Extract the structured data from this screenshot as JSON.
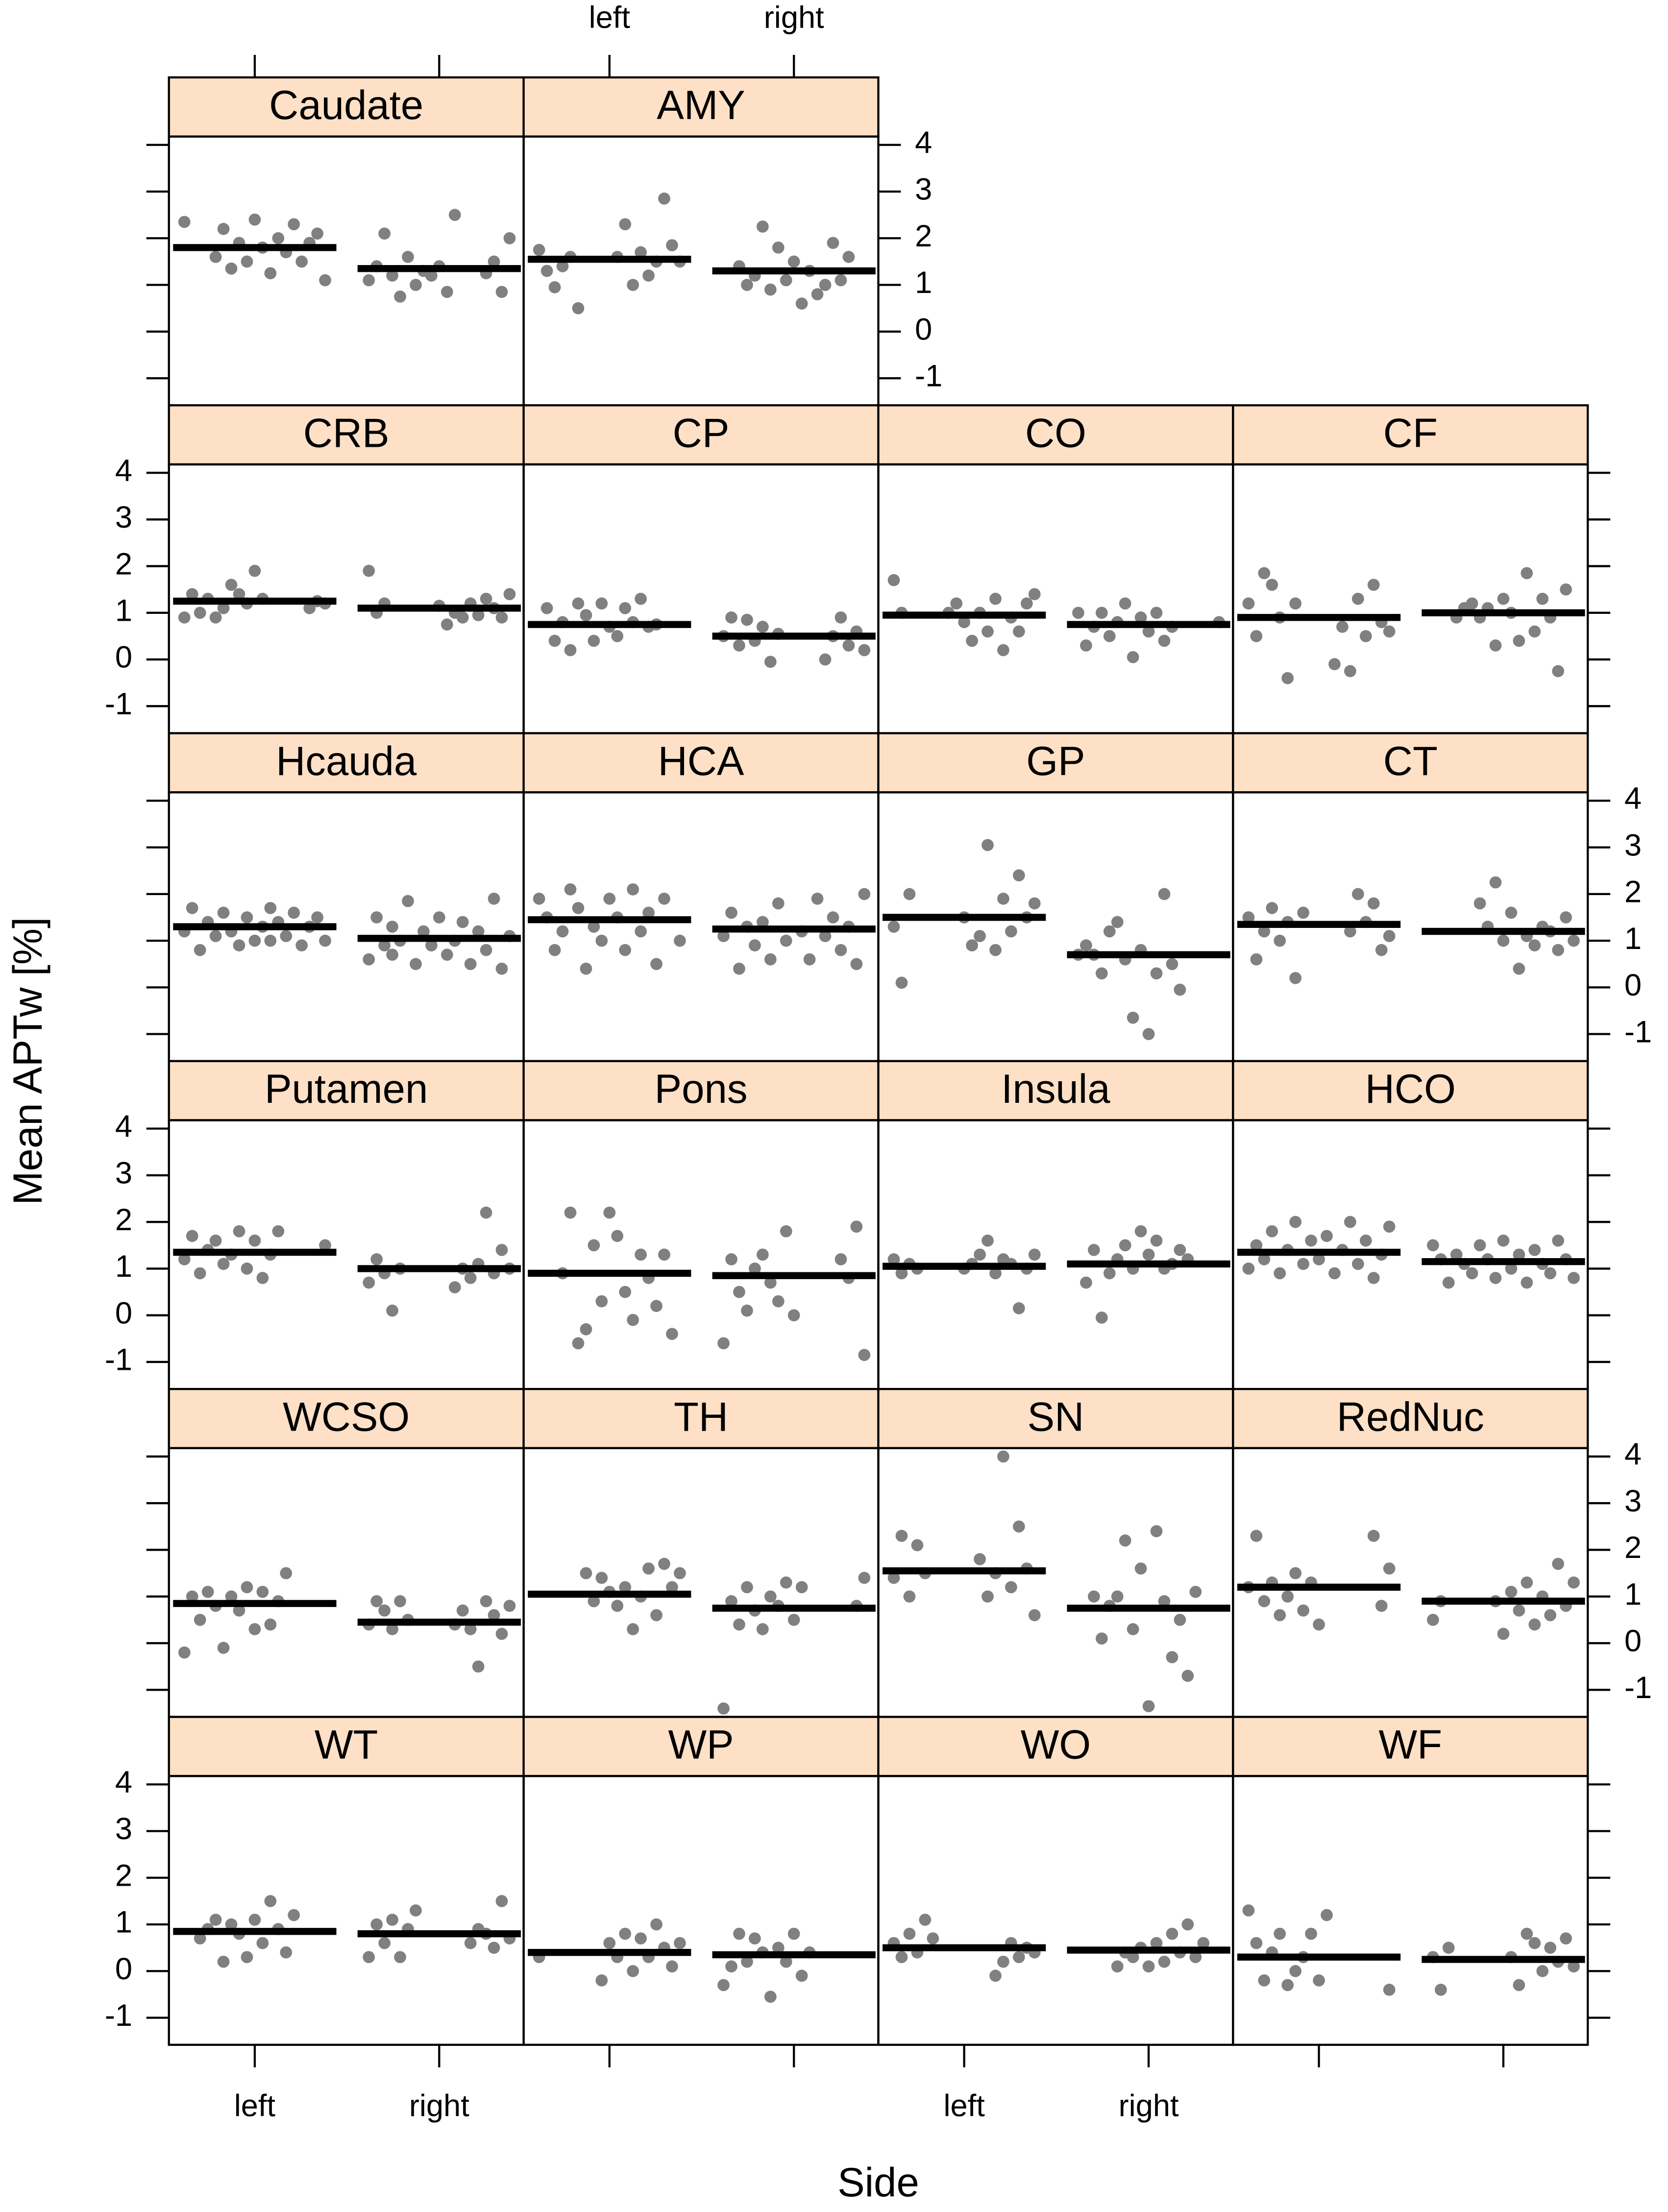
{
  "chart_data": {
    "type": "strip",
    "ylabel": "Mean APTw [%]",
    "xlabel": "Side",
    "categories": [
      "left",
      "right"
    ],
    "ylim": [
      -1.58,
      4.18
    ],
    "yticks": [
      -1,
      0,
      1,
      2,
      3,
      4
    ],
    "point_color": "#808080",
    "mean_color": "#000000",
    "strip_color": "#fde0c5",
    "panels": [
      {
        "title": "Caudate",
        "means": [
          1.8,
          1.35
        ],
        "values": [
          [
            2.35,
            1.1,
            2.1,
            1.9,
            1.5,
            2.3,
            1.7,
            2.0,
            1.25,
            1.8,
            2.4,
            1.5,
            1.9,
            1.35,
            2.2,
            1.6
          ],
          [
            2.5,
            0.85,
            1.4,
            1.2,
            1.3,
            1.0,
            1.6,
            0.75,
            1.2,
            2.1,
            1.4,
            1.1,
            2.0,
            0.85,
            1.5,
            1.25
          ]
        ]
      },
      {
        "title": "AMY",
        "means": [
          1.55,
          1.3
        ],
        "values": [
          [
            0.5,
            1.6,
            1.4,
            0.95,
            1.3,
            1.75,
            1.5,
            1.85,
            2.85,
            1.5,
            1.2,
            1.7,
            1.0,
            2.3,
            1.6
          ],
          [
            1.6,
            1.1,
            1.9,
            1.0,
            0.8,
            1.3,
            0.6,
            1.5,
            1.1,
            1.8,
            0.9,
            2.25,
            1.2,
            1.0,
            1.4
          ]
        ]
      },
      {
        "title": "CRB",
        "means": [
          1.25,
          1.1
        ],
        "values": [
          [
            1.3,
            1.9,
            1.2,
            1.4,
            1.6,
            1.1,
            0.9,
            1.3,
            1.0,
            1.4,
            0.9,
            1.2,
            1.25,
            1.1
          ],
          [
            1.2,
            1.0,
            1.9,
            1.4,
            0.9,
            1.1,
            1.3,
            0.95,
            1.2,
            0.9,
            1.0,
            0.75,
            1.15
          ]
        ]
      },
      {
        "title": "CP",
        "means": [
          0.75,
          0.5
        ],
        "values": [
          [
            0.75,
            0.7,
            1.3,
            0.8,
            1.1,
            0.5,
            0.7,
            1.2,
            0.4,
            0.95,
            1.2,
            0.2,
            0.8,
            0.4,
            1.1
          ],
          [
            0.55,
            -0.05,
            0.7,
            0.4,
            0.85,
            0.3,
            0.9,
            0.5,
            0.2,
            0.6,
            0.3,
            0.9,
            0.5,
            0.0
          ]
        ]
      },
      {
        "title": "CO",
        "means": [
          0.95,
          0.75
        ],
        "values": [
          [
            1.0,
            1.7,
            1.4,
            1.2,
            0.6,
            0.9,
            0.2,
            1.3,
            0.6,
            1.0,
            0.4,
            0.8,
            1.2,
            1.0
          ],
          [
            0.7,
            0.4,
            1.0,
            0.6,
            0.9,
            0.05,
            1.2,
            0.8,
            0.5,
            1.0,
            0.7,
            0.3,
            1.0,
            0.8
          ]
        ]
      },
      {
        "title": "CF",
        "means": [
          0.9,
          1.0
        ],
        "values": [
          [
            1.2,
            -0.4,
            0.9,
            1.6,
            1.85,
            0.5,
            1.2,
            0.6,
            0.8,
            1.6,
            0.5,
            1.3,
            -0.25,
            0.7,
            -0.1
          ],
          [
            1.5,
            -0.25,
            0.9,
            1.3,
            0.6,
            1.85,
            0.4,
            1.0,
            1.3,
            0.3,
            1.1,
            0.9,
            1.2,
            1.1,
            0.9
          ]
        ]
      },
      {
        "title": "Hcauda",
        "means": [
          1.3,
          1.05
        ],
        "values": [
          [
            1.7,
            1.3,
            1.0,
            1.5,
            0.9,
            1.2,
            1.6,
            1.1,
            1.4,
            0.8,
            1.7,
            1.2,
            1.0,
            1.5,
            1.3,
            0.9,
            1.6,
            1.1,
            1.4,
            1.0
          ],
          [
            1.3,
            0.9,
            1.5,
            0.6,
            1.1,
            0.4,
            1.9,
            0.8,
            1.2,
            0.5,
            1.4,
            1.0,
            0.7,
            1.5,
            0.9,
            1.2,
            0.5,
            1.85,
            1.0,
            0.7
          ]
        ]
      },
      {
        "title": "HCA",
        "means": [
          1.45,
          1.25
        ],
        "values": [
          [
            1.9,
            0.5,
            1.6,
            1.2,
            2.1,
            0.8,
            1.5,
            1.9,
            1.0,
            1.3,
            0.4,
            1.7,
            2.1,
            1.2,
            0.8,
            1.5,
            1.9,
            1.0
          ],
          [
            1.0,
            1.8,
            0.6,
            1.4,
            0.9,
            1.3,
            0.4,
            1.6,
            1.1,
            2.0,
            0.5,
            1.3,
            0.8,
            1.5,
            1.1,
            1.9,
            0.6,
            1.2
          ]
        ]
      },
      {
        "title": "GP",
        "means": [
          1.5,
          0.7
        ],
        "values": [
          [
            2.0,
            0.1,
            1.3,
            1.8,
            1.5,
            2.4,
            1.2,
            1.9,
            0.8,
            3.05,
            1.1,
            0.9,
            1.5
          ],
          [
            -0.05,
            0.5,
            2.0,
            0.3,
            -1.0,
            0.8,
            -0.65,
            0.6,
            1.4,
            1.2,
            0.3,
            0.7,
            0.9,
            0.7
          ]
        ]
      },
      {
        "title": "CT",
        "means": [
          1.35,
          1.2
        ],
        "values": [
          [
            1.6,
            0.2,
            1.4,
            1.0,
            1.7,
            1.2,
            0.6,
            1.5,
            1.1,
            0.8,
            1.8,
            1.4,
            2.0,
            1.2
          ],
          [
            1.0,
            1.5,
            0.8,
            1.2,
            1.3,
            0.9,
            1.1,
            0.4,
            1.6,
            1.0,
            2.25,
            1.3,
            1.8
          ]
        ]
      },
      {
        "title": "Putamen",
        "means": [
          1.35,
          1.0
        ],
        "values": [
          [
            1.8,
            1.3,
            0.8,
            1.6,
            1.0,
            1.8,
            1.3,
            1.1,
            1.6,
            1.4,
            0.9,
            1.7,
            1.2,
            1.5
          ],
          [
            1.0,
            0.1,
            0.9,
            1.2,
            0.7,
            1.0,
            1.4,
            0.9,
            2.2,
            1.1,
            0.8,
            1.0,
            0.6
          ]
        ]
      },
      {
        "title": "Pons",
        "means": [
          0.9,
          0.85
        ],
        "values": [
          [
            -0.4,
            1.3,
            0.2,
            0.8,
            1.3,
            -0.1,
            0.5,
            1.7,
            2.2,
            0.3,
            1.5,
            -0.3,
            -0.6,
            2.2,
            0.9
          ],
          [
            0.0,
            1.8,
            0.3,
            0.7,
            1.3,
            1.0,
            0.1,
            0.5,
            1.2,
            -0.6,
            -0.85,
            1.9,
            0.8,
            1.2
          ]
        ]
      },
      {
        "title": "Insula",
        "means": [
          1.05,
          1.1
        ],
        "values": [
          [
            1.0,
            1.1,
            0.9,
            1.2,
            1.3,
            1.0,
            0.15,
            1.1,
            1.2,
            0.9,
            1.6,
            1.3,
            1.1,
            1.0
          ],
          [
            1.2,
            1.4,
            1.1,
            1.0,
            1.6,
            1.3,
            1.8,
            1.0,
            1.5,
            1.2,
            0.9,
            -0.05,
            1.4,
            0.7
          ]
        ]
      },
      {
        "title": "HCO",
        "means": [
          1.35,
          1.15
        ],
        "values": [
          [
            1.6,
            1.1,
            2.0,
            1.4,
            0.9,
            1.8,
            1.2,
            1.5,
            1.0,
            1.9,
            1.3,
            0.8,
            1.6,
            1.1,
            2.0,
            1.4,
            0.9,
            1.7,
            1.2
          ],
          [
            1.5,
            0.8,
            1.2,
            1.6,
            0.9,
            1.1,
            1.4,
            0.7,
            1.3,
            1.0,
            1.6,
            0.8,
            1.2,
            1.5,
            0.9,
            1.1,
            1.3,
            0.7,
            1.2
          ]
        ]
      },
      {
        "title": "WCSO",
        "means": [
          0.85,
          0.45
        ],
        "values": [
          [
            1.5,
            0.9,
            0.4,
            1.1,
            0.3,
            1.2,
            0.7,
            1.0,
            -0.1,
            0.8,
            1.1,
            0.5,
            1.0,
            -0.2
          ],
          [
            0.5,
            0.9,
            0.3,
            0.7,
            0.9,
            0.4,
            0.8,
            0.2,
            0.6,
            0.9,
            -0.5,
            0.3,
            0.7,
            0.4
          ]
        ]
      },
      {
        "title": "TH",
        "means": [
          1.05,
          0.75
        ],
        "values": [
          [
            1.5,
            1.2,
            1.7,
            0.6,
            1.6,
            1.0,
            0.3,
            1.2,
            0.8,
            1.1,
            1.4,
            0.9,
            1.5
          ],
          [
            1.2,
            0.5,
            1.3,
            0.8,
            1.0,
            0.3,
            0.7,
            1.2,
            0.4,
            0.9,
            -1.4,
            1.4,
            0.8
          ]
        ]
      },
      {
        "title": "SN",
        "means": [
          1.55,
          0.75
        ],
        "values": [
          [
            1.5,
            2.1,
            1.0,
            2.3,
            1.4,
            0.6,
            1.6,
            2.5,
            1.2,
            4.0,
            1.5,
            1.0,
            1.8
          ],
          [
            1.1,
            -0.7,
            0.5,
            -0.3,
            0.9,
            2.4,
            -1.35,
            1.6,
            0.3,
            2.2,
            1.0,
            0.8,
            0.1,
            1.0
          ]
        ]
      },
      {
        "title": "RedNuc",
        "means": [
          1.2,
          0.9
        ],
        "values": [
          [
            0.4,
            1.3,
            0.7,
            1.5,
            1.0,
            0.6,
            1.3,
            0.9,
            2.3,
            1.2,
            1.6,
            0.8,
            2.3
          ],
          [
            0.9,
            0.5,
            1.3,
            0.8,
            1.7,
            0.6,
            1.0,
            0.4,
            1.3,
            0.7,
            1.1,
            0.2,
            0.9
          ]
        ]
      },
      {
        "title": "WT",
        "means": [
          0.85,
          0.8
        ],
        "values": [
          [
            1.2,
            0.4,
            0.9,
            1.5,
            0.6,
            1.1,
            0.3,
            0.8,
            1.0,
            0.2,
            1.1,
            0.9,
            0.7
          ],
          [
            1.3,
            0.9,
            0.3,
            1.1,
            0.6,
            1.0,
            0.3,
            0.7,
            1.5,
            0.5,
            0.8,
            0.9,
            0.6
          ]
        ]
      },
      {
        "title": "WP",
        "means": [
          0.4,
          0.35
        ],
        "values": [
          [
            0.3,
            0.6,
            0.1,
            0.5,
            1.0,
            0.3,
            0.7,
            0.0,
            0.8,
            0.3,
            0.6,
            -0.2
          ],
          [
            0.4,
            -0.1,
            0.8,
            0.2,
            0.5,
            -0.55,
            0.4,
            0.7,
            0.2,
            0.8,
            0.1,
            -0.3
          ]
        ]
      },
      {
        "title": "WO",
        "means": [
          0.5,
          0.45
        ],
        "values": [
          [
            0.7,
            1.1,
            0.4,
            0.8,
            0.3,
            0.6,
            0.4,
            0.5,
            0.3,
            0.6,
            0.2,
            -0.1
          ],
          [
            0.6,
            0.3,
            1.0,
            0.4,
            0.8,
            0.2,
            0.6,
            0.1,
            0.5,
            0.3,
            0.4,
            0.1
          ]
        ]
      },
      {
        "title": "WF",
        "means": [
          0.3,
          0.25
        ],
        "values": [
          [
            1.2,
            -0.2,
            0.8,
            0.3,
            0.0,
            -0.3,
            0.8,
            0.4,
            -0.2,
            0.6,
            1.3,
            -0.4
          ],
          [
            0.5,
            -0.4,
            0.3,
            0.1,
            0.7,
            0.2,
            0.5,
            0.0,
            0.6,
            0.8,
            -0.3,
            0.3
          ]
        ]
      }
    ]
  }
}
